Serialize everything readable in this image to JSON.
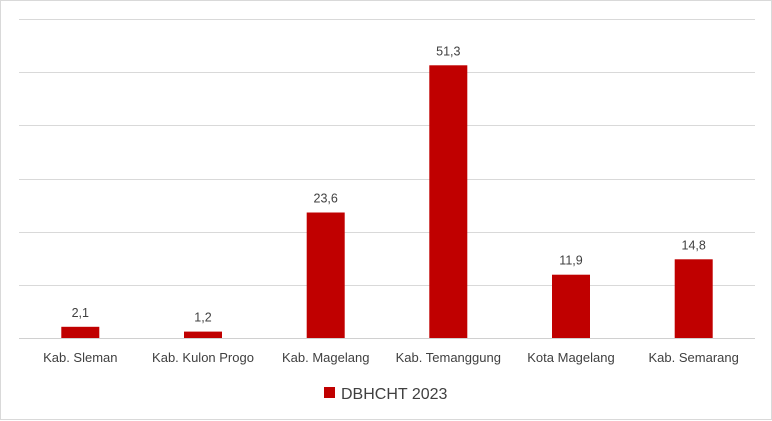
{
  "chart_data": {
    "type": "bar",
    "categories": [
      "Kab. Sleman",
      "Kab. Kulon Progo",
      "Kab. Magelang",
      "Kab. Temanggung",
      "Kota Magelang",
      "Kab. Semarang"
    ],
    "series": [
      {
        "name": "DBHCHT 2023",
        "values": [
          2.1,
          1.2,
          23.6,
          51.3,
          11.9,
          14.8
        ],
        "labels": [
          "2,1",
          "1,2",
          "23,6",
          "51,3",
          "11,9",
          "14,8"
        ],
        "color": "#c00000"
      }
    ],
    "ylim": [
      0,
      60
    ],
    "y_gridlines": [
      0,
      10,
      20,
      30,
      40,
      50,
      60
    ],
    "grid": true,
    "y_tick_labels_shown": false,
    "legend_position": "bottom"
  }
}
